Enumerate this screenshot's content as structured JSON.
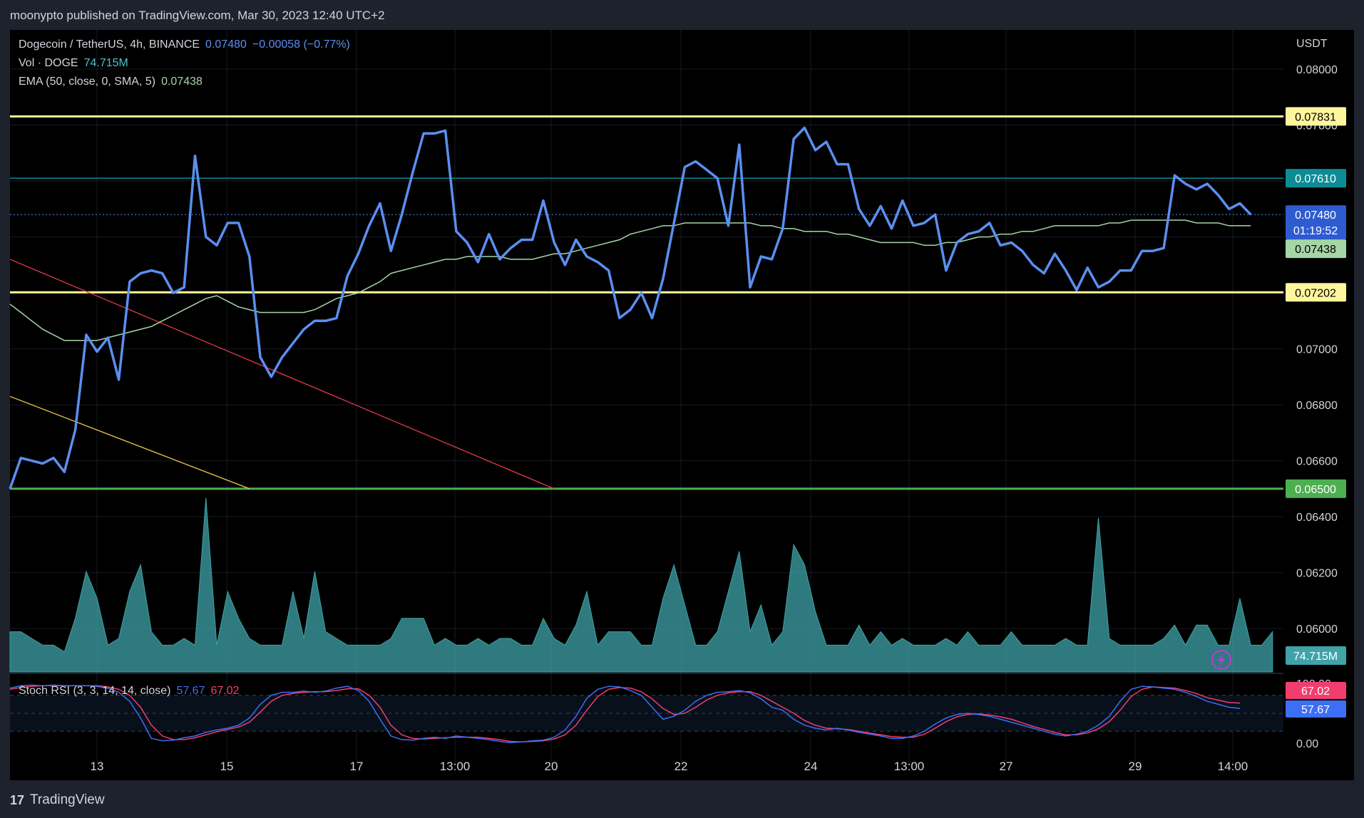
{
  "header": {
    "publisher_line": "moonypto published on TradingView.com, Mar 30, 2023 12:40 UTC+2"
  },
  "legend": {
    "symbol": "Dogecoin / TetherUS, 4h, BINANCE",
    "price": "0.07480",
    "change": "−0.00058 (−0.77%)",
    "vol_label": "Vol · DOGE",
    "vol_value": "74.715M",
    "ema_label": "EMA (50, close, 0, SMA, 5)",
    "ema_value": "0.07438",
    "stoch_label": "Stoch RSI (3, 3, 14, 14, close)",
    "stoch_k": "57.67",
    "stoch_d": "67.02"
  },
  "colors": {
    "price_line": "#5b8ff0",
    "ema_line": "#a5d6a7",
    "resistance": "#fff59d",
    "mid_level": "#0e8c95",
    "support": "#4caf50",
    "trend_red": "#e5384c",
    "trend_yellow": "#f2c94c",
    "volume": "#3fa3a8",
    "stoch_k": "#3d6ff5",
    "stoch_d": "#f23e6e"
  },
  "axis": {
    "currency": "USDT",
    "stoch_ticks": [
      "100.00",
      "0.00"
    ],
    "x_ticks": [
      "13",
      "15",
      "17",
      "13:00",
      "20",
      "22",
      "24",
      "13:00",
      "27",
      "29",
      "14:00"
    ],
    "badges": {
      "res_top": "0.07831",
      "mid": "0.07610",
      "last": "0.07480",
      "countdown": "01:19:52",
      "ema": "0.07438",
      "res_bottom": "0.07202",
      "support": "0.06500",
      "volume": "74.715M",
      "stoch_d": "67.02",
      "stoch_k": "57.67"
    }
  },
  "footer": {
    "logo": "17",
    "brand": "TradingView"
  },
  "chart_data": {
    "type": "line",
    "symbol": "DOGEUSDT",
    "timeframe": "4h",
    "y_ticks": [
      0.08,
      0.078,
      0.076,
      0.074,
      0.072,
      0.07,
      0.068,
      0.066,
      0.064,
      0.062,
      0.06
    ],
    "ylim": [
      0.0584,
      0.0814
    ],
    "xlim": [
      0,
      117
    ],
    "horizontal_levels": [
      {
        "price": 0.07831,
        "role": "resistance"
      },
      {
        "price": 0.0761,
        "role": "mid"
      },
      {
        "price": 0.07202,
        "role": "resistance"
      },
      {
        "price": 0.065,
        "role": "support"
      }
    ],
    "trendlines": [
      {
        "color": "red",
        "from": [
          0,
          0.0732
        ],
        "to": [
          50,
          0.065
        ]
      },
      {
        "color": "yellow",
        "from": [
          0,
          0.0683
        ],
        "to": [
          22,
          0.065
        ]
      }
    ],
    "price_series": [
      0.065,
      0.0661,
      0.066,
      0.0659,
      0.0661,
      0.0656,
      0.0671,
      0.0705,
      0.0699,
      0.0704,
      0.0689,
      0.0724,
      0.0727,
      0.0728,
      0.0727,
      0.072,
      0.0722,
      0.0769,
      0.074,
      0.0737,
      0.0745,
      0.0745,
      0.0733,
      0.0697,
      0.069,
      0.0697,
      0.0702,
      0.0707,
      0.071,
      0.071,
      0.0711,
      0.0726,
      0.0734,
      0.0744,
      0.0752,
      0.0735,
      0.0748,
      0.0763,
      0.0777,
      0.0777,
      0.0778,
      0.0742,
      0.0738,
      0.0731,
      0.0741,
      0.0732,
      0.0736,
      0.0739,
      0.0739,
      0.0753,
      0.0738,
      0.073,
      0.0739,
      0.0733,
      0.0731,
      0.0728,
      0.0711,
      0.0714,
      0.072,
      0.0711,
      0.0725,
      0.0745,
      0.0765,
      0.0767,
      0.0764,
      0.0761,
      0.0744,
      0.0773,
      0.0722,
      0.0733,
      0.0732,
      0.0743,
      0.0775,
      0.0779,
      0.0771,
      0.0774,
      0.0766,
      0.0766,
      0.075,
      0.0744,
      0.0751,
      0.0743,
      0.0753,
      0.0744,
      0.0745,
      0.0748,
      0.0728,
      0.0738,
      0.0741,
      0.0742,
      0.0745,
      0.0737,
      0.0738,
      0.0735,
      0.073,
      0.0727,
      0.0734,
      0.0728,
      0.0721,
      0.0729,
      0.0722,
      0.0724,
      0.0728,
      0.0728,
      0.0735,
      0.0735,
      0.0736,
      0.0762,
      0.0759,
      0.0757,
      0.0759,
      0.0755,
      0.075,
      0.0752,
      0.0748
    ],
    "ema_series": [
      0.0716,
      0.0713,
      0.071,
      0.0707,
      0.0705,
      0.0703,
      0.0703,
      0.0703,
      0.0703,
      0.0704,
      0.0705,
      0.0706,
      0.0707,
      0.0708,
      0.071,
      0.0712,
      0.0714,
      0.0716,
      0.0718,
      0.0719,
      0.0717,
      0.0715,
      0.0714,
      0.0713,
      0.0713,
      0.0713,
      0.0713,
      0.0713,
      0.0714,
      0.0716,
      0.0718,
      0.0719,
      0.072,
      0.0722,
      0.0724,
      0.0727,
      0.0728,
      0.0729,
      0.073,
      0.0731,
      0.0732,
      0.0732,
      0.0733,
      0.0733,
      0.0733,
      0.0733,
      0.0732,
      0.0732,
      0.0732,
      0.0733,
      0.0734,
      0.0734,
      0.0735,
      0.0736,
      0.0737,
      0.0738,
      0.0739,
      0.0741,
      0.0742,
      0.0743,
      0.0744,
      0.0744,
      0.0745,
      0.0745,
      0.0745,
      0.0745,
      0.0745,
      0.0745,
      0.0745,
      0.0744,
      0.0744,
      0.0743,
      0.0743,
      0.0742,
      0.0742,
      0.0742,
      0.0741,
      0.0741,
      0.074,
      0.0739,
      0.0738,
      0.0738,
      0.0738,
      0.0738,
      0.0737,
      0.0737,
      0.0738,
      0.0738,
      0.0739,
      0.074,
      0.074,
      0.0741,
      0.0741,
      0.0742,
      0.0742,
      0.0743,
      0.0744,
      0.0744,
      0.0744,
      0.0744,
      0.0744,
      0.0745,
      0.0745,
      0.0746,
      0.0746,
      0.0746,
      0.0746,
      0.0746,
      0.0746,
      0.0745,
      0.0745,
      0.0745,
      0.0744,
      0.0744,
      0.0744
    ],
    "volume_series": [
      3,
      3,
      2,
      1,
      1,
      0,
      5,
      12,
      8,
      1,
      2,
      9,
      13,
      3,
      1,
      1,
      2,
      1,
      23,
      1,
      9,
      5,
      2,
      1,
      1,
      1,
      9,
      2,
      12,
      3,
      2,
      1,
      1,
      1,
      1,
      2,
      5,
      5,
      5,
      1,
      2,
      1,
      1,
      2,
      1,
      2,
      2,
      1,
      1,
      5,
      2,
      1,
      4,
      9,
      1,
      3,
      3,
      3,
      1,
      1,
      8,
      13,
      7,
      1,
      1,
      3,
      9,
      15,
      3,
      7,
      1,
      3,
      16,
      13,
      6,
      1,
      1,
      1,
      4,
      1,
      3,
      1,
      2,
      1,
      1,
      1,
      2,
      1,
      3,
      1,
      1,
      1,
      3,
      1,
      1,
      1,
      1,
      2,
      1,
      1,
      20,
      2,
      1,
      1,
      1,
      1,
      2,
      4,
      1,
      4,
      4,
      1,
      1,
      8,
      1,
      1,
      3
    ],
    "volume_last": 74.715,
    "stoch_k_series": [
      92,
      96,
      97,
      96,
      97,
      96,
      96,
      96,
      95,
      92,
      85,
      70,
      42,
      8,
      4,
      5,
      9,
      12,
      18,
      22,
      25,
      30,
      42,
      65,
      80,
      85,
      85,
      87,
      85,
      87,
      92,
      95,
      88,
      70,
      40,
      12,
      6,
      5,
      8,
      10,
      8,
      12,
      10,
      8,
      6,
      3,
      1,
      2,
      4,
      5,
      10,
      22,
      45,
      75,
      90,
      95,
      94,
      88,
      80,
      60,
      40,
      45,
      55,
      70,
      80,
      85,
      86,
      88,
      84,
      74,
      60,
      55,
      40,
      30,
      25,
      22,
      25,
      22,
      18,
      15,
      12,
      8,
      8,
      12,
      20,
      32,
      42,
      48,
      50,
      48,
      45,
      40,
      35,
      30,
      25,
      20,
      15,
      12,
      15,
      20,
      30,
      45,
      70,
      90,
      95,
      94,
      92,
      90,
      85,
      78,
      70,
      65,
      60,
      58
    ],
    "stoch_d_series": [
      90,
      93,
      95,
      96,
      96,
      96,
      96,
      96,
      96,
      94,
      90,
      80,
      60,
      30,
      12,
      6,
      6,
      9,
      14,
      19,
      23,
      27,
      35,
      52,
      70,
      80,
      83,
      85,
      86,
      86,
      88,
      91,
      91,
      80,
      60,
      30,
      14,
      8,
      7,
      8,
      9,
      10,
      10,
      10,
      8,
      6,
      3,
      2,
      3,
      4,
      7,
      14,
      30,
      55,
      78,
      90,
      93,
      92,
      86,
      74,
      58,
      48,
      50,
      60,
      72,
      80,
      84,
      86,
      86,
      80,
      70,
      60,
      50,
      38,
      30,
      25,
      24,
      23,
      20,
      17,
      14,
      11,
      10,
      10,
      15,
      25,
      36,
      44,
      48,
      49,
      47,
      44,
      40,
      34,
      28,
      23,
      18,
      14,
      14,
      17,
      24,
      36,
      55,
      78,
      90,
      94,
      93,
      92,
      88,
      83,
      76,
      72,
      68,
      67
    ]
  }
}
